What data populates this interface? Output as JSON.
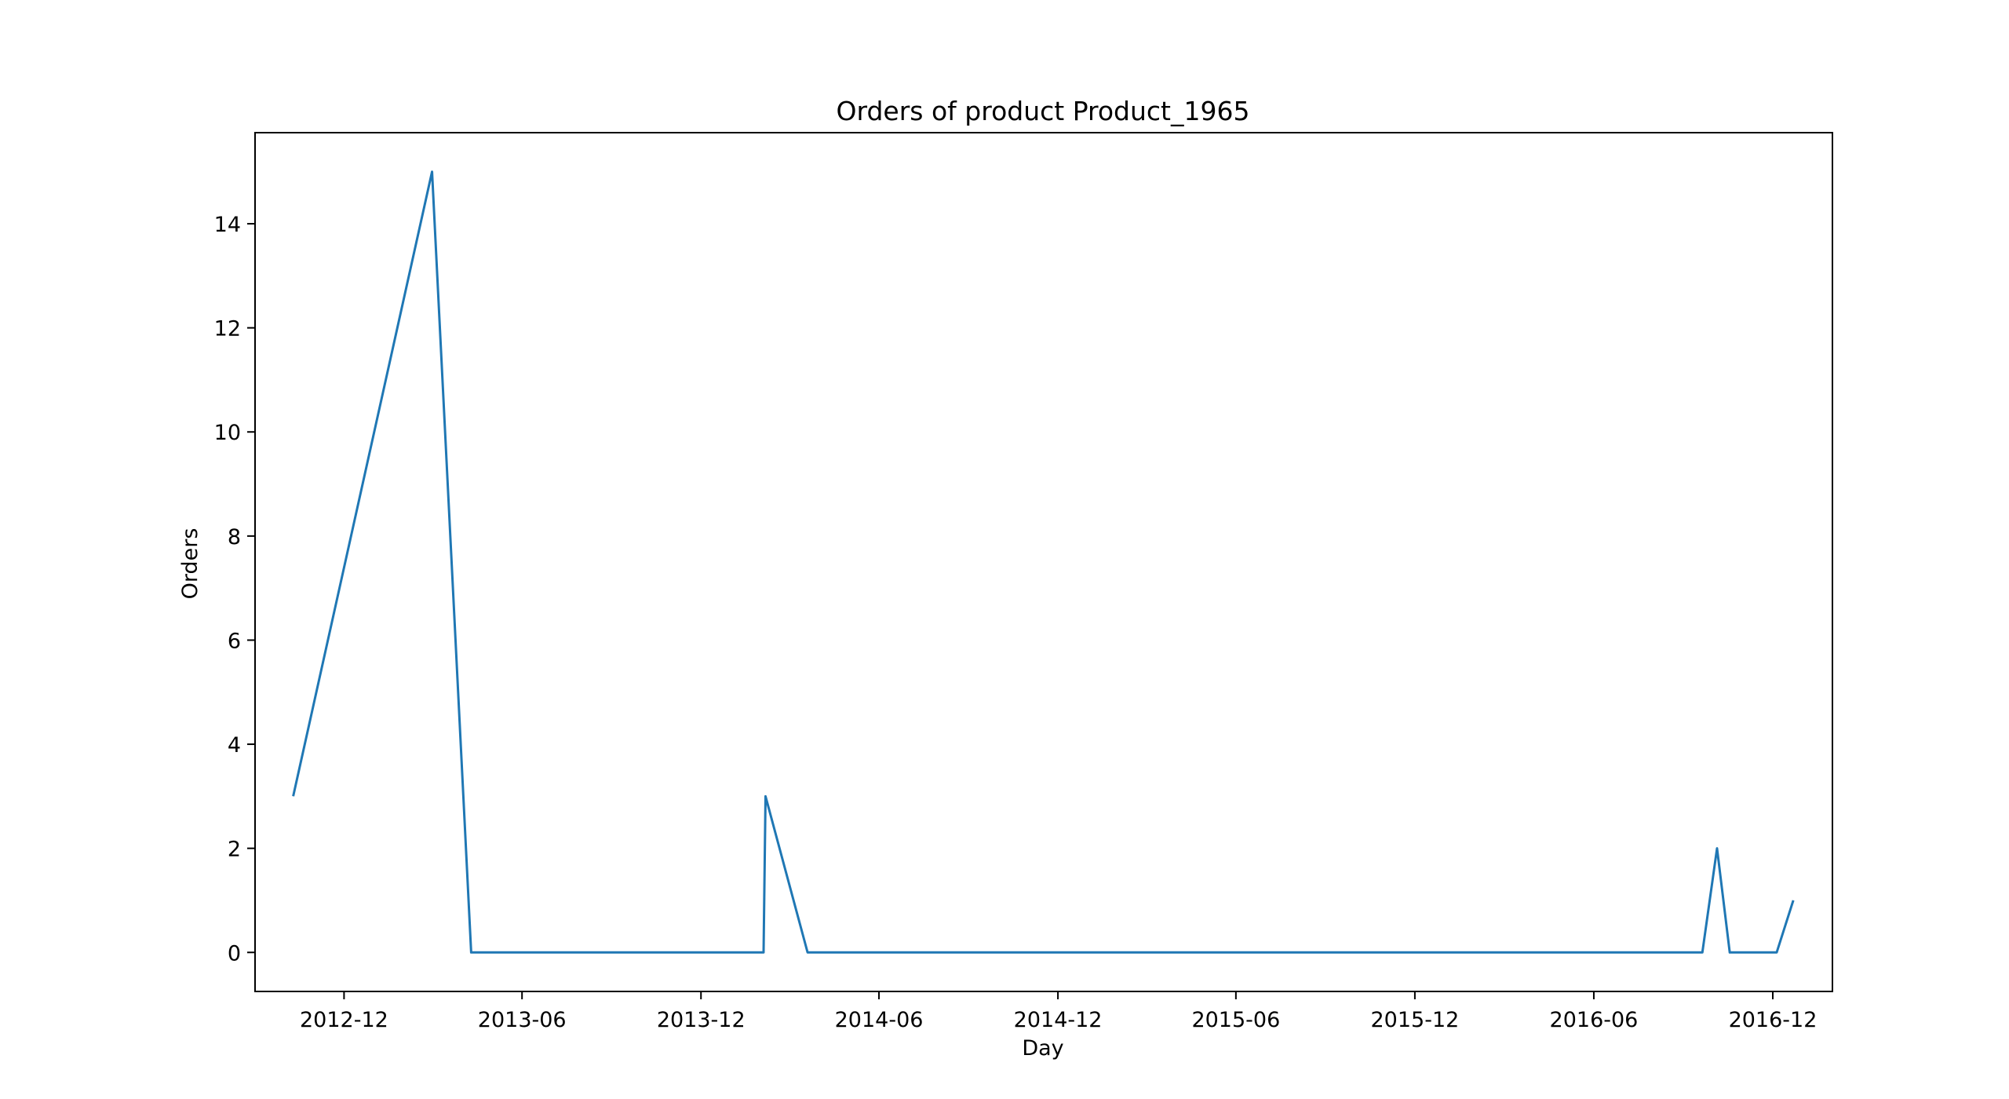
{
  "colors": {
    "series": "#1f77b4",
    "axes": "#000000",
    "background": "#ffffff"
  },
  "chart_data": {
    "type": "line",
    "title": "Orders of product Product_1965",
    "xlabel": "Day",
    "ylabel": "Orders",
    "x_axis_type": "date",
    "xlim": [
      "2012-09-01",
      "2017-01-31"
    ],
    "ylim": [
      -0.75,
      15.75
    ],
    "grid": false,
    "legend": "none",
    "x_ticks": [
      {
        "date": "2012-12-01",
        "label": "2012-12"
      },
      {
        "date": "2013-06-01",
        "label": "2013-06"
      },
      {
        "date": "2013-12-01",
        "label": "2013-12"
      },
      {
        "date": "2014-06-01",
        "label": "2014-06"
      },
      {
        "date": "2014-12-01",
        "label": "2014-12"
      },
      {
        "date": "2015-06-01",
        "label": "2015-06"
      },
      {
        "date": "2015-12-01",
        "label": "2015-12"
      },
      {
        "date": "2016-06-01",
        "label": "2016-06"
      },
      {
        "date": "2016-12-01",
        "label": "2016-12"
      }
    ],
    "y_ticks": [
      0,
      2,
      4,
      6,
      8,
      10,
      12,
      14
    ],
    "series": [
      {
        "points": [
          {
            "x": "2012-10-10",
            "y": 3
          },
          {
            "x": "2013-03-01",
            "y": 15
          },
          {
            "x": "2013-04-10",
            "y": 0
          },
          {
            "x": "2014-02-03",
            "y": 0
          },
          {
            "x": "2014-02-05",
            "y": 3
          },
          {
            "x": "2014-03-20",
            "y": 0
          },
          {
            "x": "2016-09-20",
            "y": 0
          },
          {
            "x": "2016-10-05",
            "y": 2
          },
          {
            "x": "2016-10-18",
            "y": 0
          },
          {
            "x": "2016-12-05",
            "y": 0
          },
          {
            "x": "2016-12-22",
            "y": 1
          }
        ]
      }
    ]
  }
}
